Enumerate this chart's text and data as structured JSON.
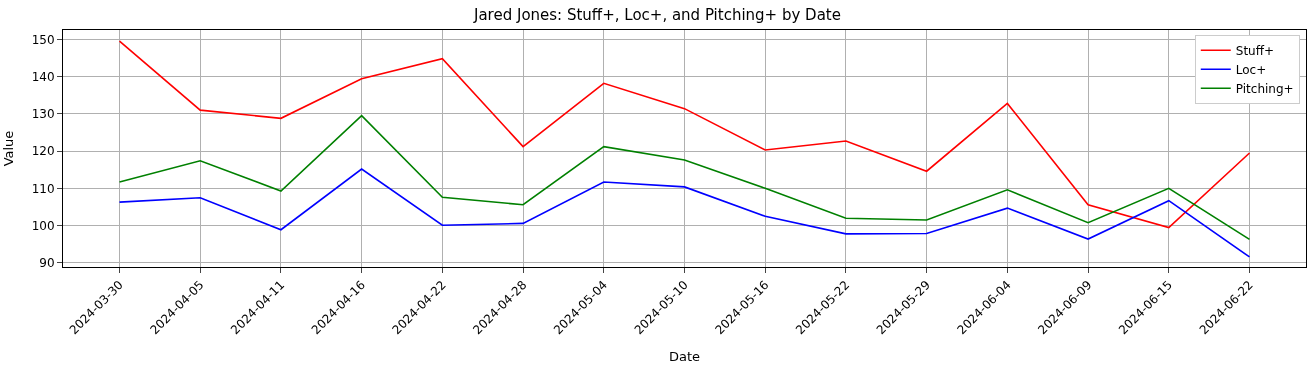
{
  "chart_data": {
    "type": "line",
    "title": "Jared Jones: Stuff+, Loc+, and Pitching+ by Date",
    "xlabel": "Date",
    "ylabel": "Value",
    "categories": [
      "2024-03-30",
      "2024-04-05",
      "2024-04-11",
      "2024-04-16",
      "2024-04-22",
      "2024-04-28",
      "2024-05-04",
      "2024-05-10",
      "2024-05-16",
      "2024-05-22",
      "2024-05-29",
      "2024-06-04",
      "2024-06-09",
      "2024-06-15",
      "2024-06-22"
    ],
    "series": [
      {
        "name": "Stuff+",
        "color": "#ff0000",
        "values": [
          149.5,
          131,
          128.8,
          139.4,
          144.8,
          121.2,
          138.2,
          131.4,
          120.3,
          122.7,
          114.6,
          132.8,
          105.6,
          99.5,
          119.5
        ]
      },
      {
        "name": "Loc+",
        "color": "#0000ff",
        "values": [
          106.3,
          107.5,
          98.9,
          115.2,
          100.1,
          100.6,
          111.7,
          110.4,
          102.5,
          97.8,
          97.9,
          104.7,
          96.4,
          106.7,
          91.6
        ]
      },
      {
        "name": "Pitching+",
        "color": "#008000",
        "values": [
          111.7,
          117.4,
          109.3,
          129.5,
          107.6,
          105.6,
          121.2,
          117.6,
          110.0,
          102.0,
          101.5,
          109.6,
          100.8,
          110.0,
          96.3
        ]
      }
    ],
    "ylim": [
      88.9,
      152.5
    ],
    "yticks": [
      90,
      100,
      110,
      120,
      130,
      140,
      150
    ],
    "grid": true,
    "legend": "top right"
  }
}
